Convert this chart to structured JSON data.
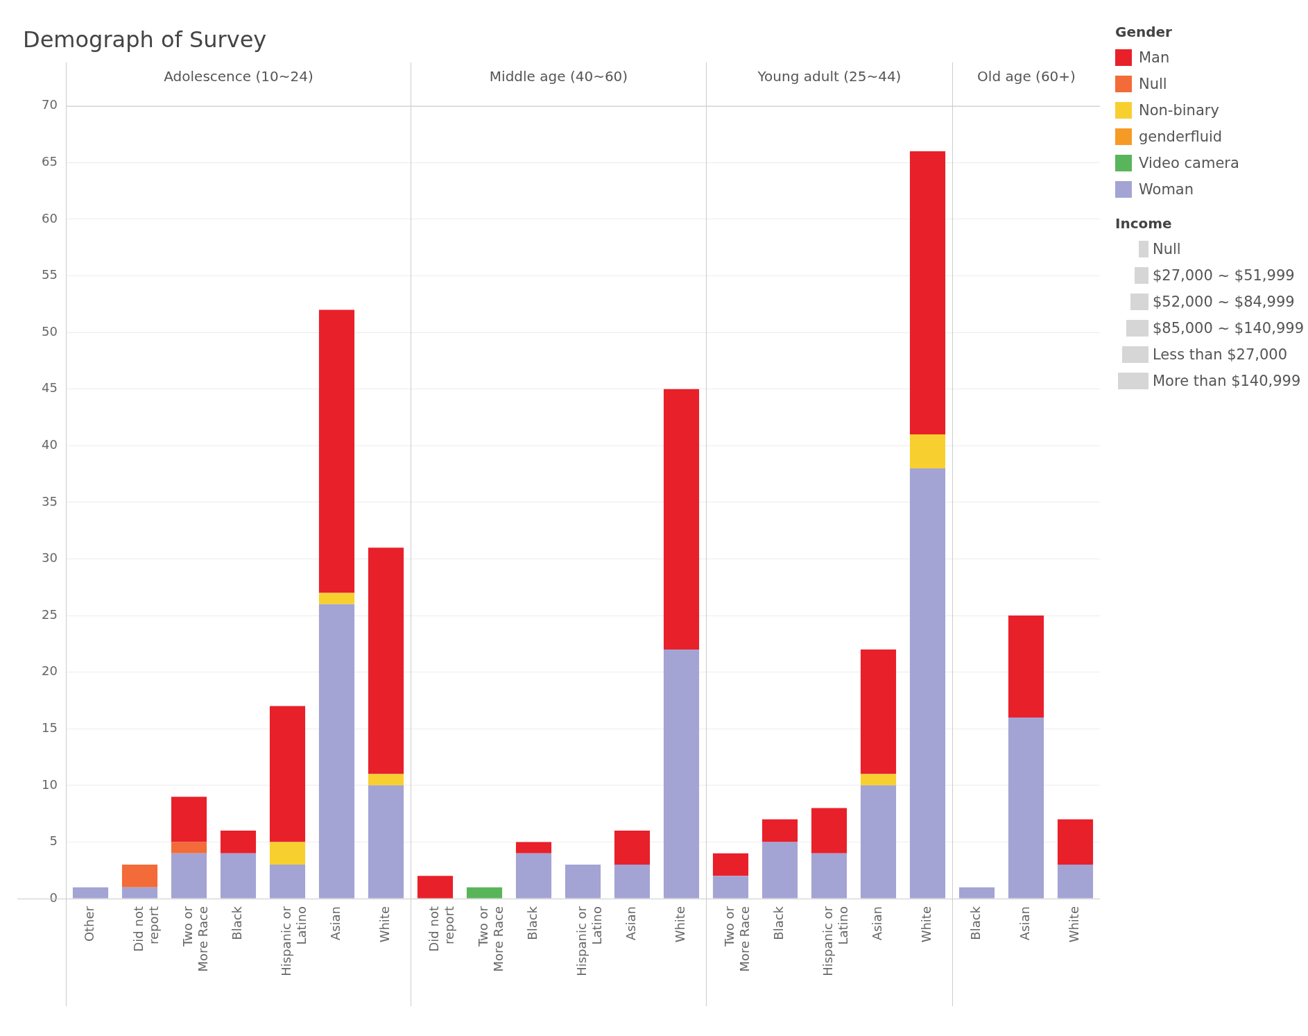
{
  "chart_data": [
    {
      "type": "bar",
      "title": "Demograph of Survey",
      "subtitle": "Adolescence (10~24)",
      "categories": [
        "Other",
        "Did not report",
        "Two or More Race",
        "Black",
        "Hispanic or Latino",
        "Asian",
        "White"
      ],
      "stacked": true,
      "ylim": [
        0,
        70
      ],
      "yticks": [
        0,
        5,
        10,
        15,
        20,
        25,
        30,
        35,
        40,
        45,
        50,
        55,
        60,
        65,
        70
      ],
      "grid": "y",
      "series": [
        {
          "color": "#a3a3d4",
          "values": [
            1,
            1,
            4,
            4,
            3,
            26,
            10
          ]
        },
        {
          "color": "#f26b38",
          "values": [
            null,
            2,
            1,
            null,
            null,
            null,
            null
          ]
        },
        {
          "color": "#f7d030",
          "values": [
            null,
            null,
            null,
            null,
            2,
            1,
            1
          ]
        },
        {
          "color": "#e8202a",
          "values": [
            null,
            null,
            4,
            2,
            12,
            25,
            20
          ]
        }
      ]
    },
    {
      "type": "bar",
      "subtitle": "Middle age (40~60)",
      "categories": [
        "Did not report",
        "Two or More Race",
        "Black",
        "Hispanic or Latino",
        "Asian",
        "White"
      ],
      "stacked": true,
      "ylim": [
        0,
        70
      ],
      "yticks": [
        0,
        5,
        10,
        15,
        20,
        25,
        30,
        35,
        40,
        45,
        50,
        55,
        60,
        65,
        70
      ],
      "grid": "y",
      "tick_labels": "x",
      "series": [
        {
          "color": "#a3a3d4",
          "values": [
            null,
            null,
            4,
            3,
            3,
            22
          ]
        },
        {
          "color": "#59b55a",
          "values": [
            null,
            1,
            null,
            null,
            null,
            null
          ]
        },
        {
          "color": "#e8202a",
          "values": [
            2,
            null,
            1,
            null,
            3,
            23
          ]
        }
      ]
    },
    {
      "type": "bar",
      "subtitle": "Young adult (25~44)",
      "categories": [
        "Two or More Race",
        "Black",
        "Hispanic or Latino",
        "Asian",
        "White"
      ],
      "stacked": true,
      "ylim": [
        0,
        70
      ],
      "yticks": [
        0,
        5,
        10,
        15,
        20,
        25,
        30,
        35,
        40,
        45,
        50,
        55,
        60,
        65,
        70
      ],
      "grid": "y",
      "tick_labels": "x",
      "series": [
        {
          "color": "#a3a3d4",
          "values": [
            2,
            5,
            4,
            10,
            38
          ]
        },
        {
          "color": "#f7d030",
          "values": [
            null,
            null,
            null,
            1,
            3
          ]
        },
        {
          "color": "#e8202a",
          "values": [
            2,
            2,
            4,
            11,
            25
          ]
        }
      ]
    },
    {
      "type": "bar",
      "subtitle": "Old age (60+)",
      "categories": [
        "Black",
        "Asian",
        "White"
      ],
      "stacked": true,
      "ylim": [
        0,
        70
      ],
      "yticks": [
        0,
        5,
        10,
        15,
        20,
        25,
        30,
        35,
        40,
        45,
        50,
        55,
        60,
        65,
        70
      ],
      "grid": "y",
      "tick_labels": "x",
      "legend": "right",
      "legend_title": "Gender",
      "annotations": [
        "Income",
        "Null",
        "$27,000 ~ $51,999",
        "$52,000 ~ $84,999",
        "$85,000 ~ $140,999",
        "Less than $27,000",
        "More than $140,999"
      ],
      "series": [
        {
          "name": "Woman",
          "color": "#a3a3d4",
          "values": [
            1,
            16,
            3
          ]
        },
        {
          "name": "Video camera",
          "color": "#59b55a",
          "values": [
            null,
            null,
            null
          ]
        },
        {
          "name": "genderfluid",
          "color": "#f59b25",
          "values": [
            null,
            null,
            null
          ]
        },
        {
          "name": "Non-binary",
          "color": "#f7d030",
          "values": [
            null,
            null,
            null
          ]
        },
        {
          "name": "Null",
          "color": "#f26b38",
          "values": [
            null,
            null,
            null
          ]
        },
        {
          "name": "Man",
          "color": "#e8202a",
          "values": [
            null,
            9,
            4
          ]
        }
      ]
    }
  ]
}
